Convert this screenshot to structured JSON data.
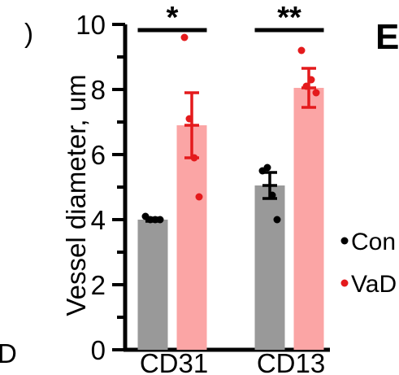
{
  "chart_data": {
    "type": "bar",
    "categories": [
      "CD31",
      "CD13"
    ],
    "ylabel": "Vessel diameter, um",
    "ylim": [
      0,
      10
    ],
    "yticks": [
      "0",
      "2",
      "4",
      "6",
      "8",
      "10"
    ],
    "grid": false,
    "series": [
      {
        "name": "Con",
        "color": "#999999",
        "point_color": "#000000",
        "values": [
          4.0,
          5.05
        ],
        "sem": [
          0.05,
          0.4
        ],
        "points": [
          [
            4.1,
            4.0,
            4.0,
            4.0
          ],
          [
            5.5,
            5.6,
            4.75,
            4.0
          ]
        ]
      },
      {
        "name": "VaD",
        "color": "#fba5a5",
        "point_color": "#e41a1c",
        "values": [
          6.9,
          8.05
        ],
        "sem": [
          1.0,
          0.6
        ],
        "points": [
          [
            9.6,
            7.1,
            5.9,
            4.7
          ],
          [
            9.2,
            8.1,
            8.3,
            7.9
          ]
        ]
      }
    ],
    "significance": [
      "*",
      "**"
    ],
    "legend": {
      "placement": "right",
      "labels": [
        "Con",
        "VaD"
      ]
    }
  },
  "panel_letter": "E",
  "left_edge_text": "D",
  "left_top_fragment": ")"
}
